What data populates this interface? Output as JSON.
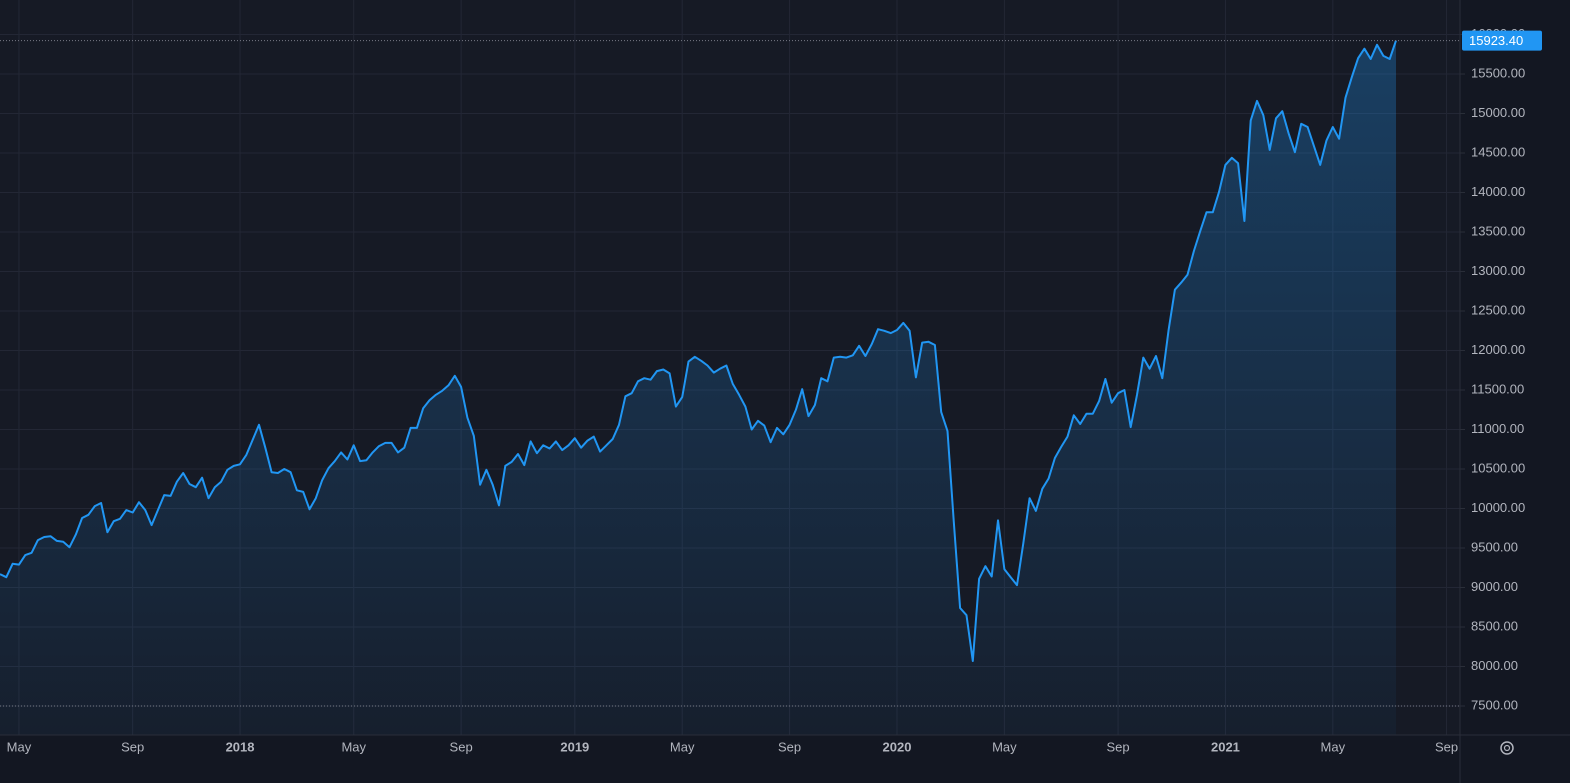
{
  "chart_data": {
    "type": "line",
    "color": "#2196f3",
    "grid": true,
    "last_label": "15923.40",
    "categories": [
      null,
      null,
      null,
      "May",
      null,
      null,
      null,
      null,
      null,
      null,
      null,
      null,
      null,
      null,
      null,
      null,
      null,
      null,
      null,
      null,
      null,
      "Sep",
      null,
      null,
      null,
      null,
      null,
      null,
      null,
      null,
      null,
      null,
      null,
      null,
      null,
      null,
      null,
      null,
      "2018",
      null,
      null,
      null,
      null,
      null,
      null,
      null,
      null,
      null,
      null,
      null,
      null,
      null,
      null,
      null,
      null,
      null,
      "May",
      null,
      null,
      null,
      null,
      null,
      null,
      null,
      null,
      null,
      null,
      null,
      null,
      null,
      null,
      null,
      null,
      "Sep",
      null,
      null,
      null,
      null,
      null,
      null,
      null,
      null,
      null,
      null,
      null,
      null,
      null,
      null,
      null,
      null,
      null,
      "2019",
      null,
      null,
      null,
      null,
      null,
      null,
      null,
      null,
      null,
      null,
      null,
      null,
      null,
      null,
      null,
      null,
      "May",
      null,
      null,
      null,
      null,
      null,
      null,
      null,
      null,
      null,
      null,
      null,
      null,
      null,
      null,
      null,
      null,
      "Sep",
      null,
      null,
      null,
      null,
      null,
      null,
      null,
      null,
      null,
      null,
      null,
      null,
      null,
      null,
      null,
      null,
      "2020",
      null,
      null,
      null,
      null,
      null,
      null,
      null,
      null,
      null,
      null,
      null,
      null,
      null,
      null,
      null,
      null,
      "May",
      null,
      null,
      null,
      null,
      null,
      null,
      null,
      null,
      null,
      null,
      null,
      null,
      null,
      null,
      null,
      null,
      null,
      "Sep",
      null,
      null,
      null,
      null,
      null,
      null,
      null,
      null,
      null,
      null,
      null,
      null,
      null,
      null,
      null,
      null,
      "2021",
      null,
      null,
      null,
      null,
      null,
      null,
      null,
      null,
      null,
      null,
      null,
      null,
      null,
      null,
      null,
      null,
      "May",
      null,
      null,
      null,
      null,
      null,
      null,
      null,
      null,
      null,
      null,
      null,
      null,
      null,
      null,
      null,
      null,
      null,
      "Sep",
      null,
      null
    ],
    "values": [
      9170,
      9130,
      9300,
      9290,
      9410,
      9440,
      9600,
      9640,
      9650,
      9590,
      9580,
      9510,
      9670,
      9880,
      9920,
      10030,
      10070,
      9700,
      9840,
      9870,
      9980,
      9950,
      10080,
      9980,
      9790,
      9980,
      10170,
      10160,
      10340,
      10450,
      10310,
      10270,
      10390,
      10130,
      10270,
      10340,
      10490,
      10540,
      10560,
      10680,
      10870,
      11060,
      10770,
      10460,
      10450,
      10500,
      10460,
      10230,
      10210,
      9990,
      10130,
      10360,
      10510,
      10600,
      10710,
      10620,
      10800,
      10600,
      10610,
      10710,
      10790,
      10830,
      10830,
      10710,
      10770,
      11020,
      11020,
      11270,
      11370,
      11440,
      11490,
      11560,
      11680,
      11540,
      11150,
      10920,
      10300,
      10490,
      10300,
      10040,
      10540,
      10590,
      10690,
      10550,
      10850,
      10700,
      10800,
      10760,
      10850,
      10740,
      10800,
      10890,
      10770,
      10860,
      10910,
      10720,
      10800,
      10880,
      11060,
      11420,
      11460,
      11610,
      11650,
      11630,
      11740,
      11760,
      11710,
      11290,
      11410,
      11860,
      11920,
      11870,
      11810,
      11720,
      11770,
      11810,
      11580,
      11440,
      11290,
      11000,
      11110,
      11050,
      10840,
      11020,
      10940,
      11060,
      11250,
      11510,
      11170,
      11310,
      11650,
      11610,
      11910,
      11920,
      11910,
      11940,
      12060,
      11930,
      12080,
      12270,
      12250,
      12220,
      12260,
      12350,
      12250,
      11660,
      12100,
      12110,
      12070,
      11220,
      10980,
      9830,
      8740,
      8650,
      8070,
      9110,
      9270,
      9140,
      9850,
      9230,
      9130,
      9030,
      9560,
      10130,
      9970,
      10250,
      10380,
      10640,
      10780,
      10910,
      11180,
      11070,
      11200,
      11200,
      11360,
      11640,
      11340,
      11460,
      11500,
      11030,
      11440,
      11910,
      11770,
      11930,
      11650,
      12260,
      12770,
      12860,
      12960,
      13260,
      13510,
      13750,
      13750,
      14010,
      14350,
      14440,
      14370,
      13640,
      14910,
      15160,
      14980,
      14540,
      14940,
      15030,
      14750,
      14510,
      14870,
      14830,
      14590,
      14350,
      14660,
      14830,
      14680,
      15200,
      15460,
      15700,
      15820,
      15690,
      15870,
      15730,
      15690,
      15923.4,
      null,
      null,
      null,
      null,
      null,
      null,
      null,
      null,
      null,
      null
    ],
    "ylim": [
      7133,
      16437
    ],
    "yticks": [
      {
        "value": 7500,
        "label": "7500.00"
      },
      {
        "value": 8000,
        "label": "8000.00"
      },
      {
        "value": 8500,
        "label": "8500.00"
      },
      {
        "value": 9000,
        "label": "9000.00"
      },
      {
        "value": 9500,
        "label": "9500.00"
      },
      {
        "value": 10000,
        "label": "10000.00"
      },
      {
        "value": 10500,
        "label": "10500.00"
      },
      {
        "value": 11000,
        "label": "11000.00"
      },
      {
        "value": 11500,
        "label": "11500.00"
      },
      {
        "value": 12000,
        "label": "12000.00"
      },
      {
        "value": 12500,
        "label": "12500.00"
      },
      {
        "value": 13000,
        "label": "13000.00"
      },
      {
        "value": 13500,
        "label": "13500.00"
      },
      {
        "value": 14000,
        "label": "14000.00"
      },
      {
        "value": 14500,
        "label": "14500.00"
      },
      {
        "value": 15000,
        "label": "15000.00"
      },
      {
        "value": 15500,
        "label": "15500.00"
      },
      {
        "value": 16000,
        "label": "16000.00"
      }
    ]
  }
}
